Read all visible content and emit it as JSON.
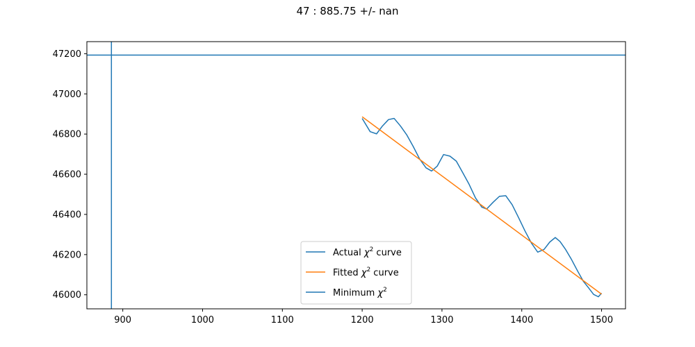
{
  "chart_data": {
    "type": "line",
    "title": "47 : 885.75 +/- nan",
    "xlabel": "",
    "ylabel": "",
    "xlim": [
      855,
      1530
    ],
    "ylim": [
      45930,
      47260
    ],
    "grid": false,
    "legend_placement": "lower-center",
    "x_ticks": [
      900,
      1000,
      1100,
      1200,
      1300,
      1400,
      1500
    ],
    "y_ticks": [
      46000,
      46200,
      46400,
      46600,
      46800,
      47000,
      47200
    ],
    "x_tick_labels": [
      "900",
      "1000",
      "1100",
      "1200",
      "1300",
      "1400",
      "1500"
    ],
    "y_tick_labels": [
      "46000",
      "46200",
      "46400",
      "46600",
      "46800",
      "47000",
      "47200"
    ],
    "series": [
      {
        "name": "Actual χ² curve",
        "legend_label": "Actual",
        "legend_suffix": " curve",
        "color": "#1f77b4",
        "x": [
          1200,
          1210,
          1218,
          1225,
          1233,
          1240,
          1248,
          1256,
          1264,
          1272,
          1280,
          1287,
          1294,
          1302,
          1310,
          1318,
          1326,
          1334,
          1342,
          1350,
          1356,
          1364,
          1372,
          1380,
          1388,
          1396,
          1404,
          1412,
          1420,
          1428,
          1435,
          1442,
          1448,
          1455,
          1462,
          1470,
          1477,
          1484,
          1490,
          1496,
          1500
        ],
        "y": [
          46878,
          46812,
          46801,
          46838,
          46872,
          46878,
          46840,
          46795,
          46738,
          46676,
          46632,
          46616,
          46640,
          46698,
          46690,
          46665,
          46608,
          46550,
          46482,
          46436,
          46427,
          46460,
          46490,
          46493,
          46448,
          46384,
          46318,
          46258,
          46212,
          46226,
          46262,
          46285,
          46265,
          46225,
          46178,
          46118,
          46068,
          46033,
          46002,
          45990,
          46008
        ]
      },
      {
        "name": "Fitted χ² curve",
        "legend_label": "Fitted",
        "legend_suffix": " curve",
        "color": "#ff7f0e",
        "x": [
          1200,
          1500
        ],
        "y": [
          46886,
          46003
        ]
      },
      {
        "name": "Minimum χ²",
        "legend_label": "Minimum",
        "legend_suffix": "",
        "color": "#1f77b4",
        "vline_x": 885.75,
        "hline_y": 47193
      }
    ]
  }
}
